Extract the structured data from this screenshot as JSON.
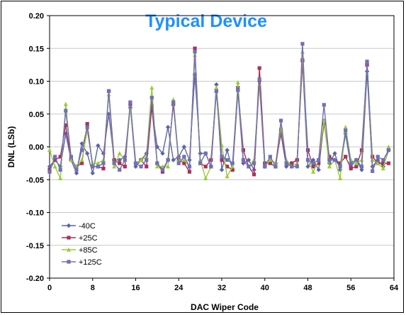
{
  "chart_data": {
    "type": "line",
    "title": "Typical Device",
    "title_color": "#1e90ff",
    "xlabel": "DAC Wiper Code",
    "ylabel": "DNL (LSb)",
    "xlim": [
      0,
      64
    ],
    "ylim": [
      -0.2,
      0.2
    ],
    "x_ticks": [
      0,
      8,
      16,
      24,
      32,
      40,
      48,
      56,
      64
    ],
    "x_tick_labels": [
      "0",
      "8",
      "16",
      "24",
      "32",
      "40",
      "48",
      "56",
      "64"
    ],
    "y_ticks": [
      0.2,
      0.15,
      0.1,
      0.05,
      0.0,
      -0.05,
      -0.1,
      -0.15,
      -0.2
    ],
    "y_tick_labels": [
      "0.20",
      "0.15",
      "0.10",
      "0.05",
      "0.00",
      "-0.05",
      "-0.10",
      "-0.15",
      "-0.20"
    ],
    "grid": "horizontal",
    "legend_position": "bottom-left",
    "x": [
      0,
      1,
      2,
      3,
      4,
      5,
      6,
      7,
      8,
      9,
      10,
      11,
      12,
      13,
      14,
      15,
      16,
      17,
      18,
      19,
      20,
      21,
      22,
      23,
      24,
      25,
      26,
      27,
      28,
      29,
      30,
      31,
      32,
      33,
      34,
      35,
      36,
      37,
      38,
      39,
      40,
      41,
      42,
      43,
      44,
      45,
      46,
      47,
      48,
      49,
      50,
      51,
      52,
      53,
      54,
      55,
      56,
      57,
      58,
      59,
      60,
      61,
      62,
      63
    ],
    "series": [
      {
        "name": "-40C",
        "color": "#5a64a8",
        "marker": "diamond",
        "values": [
          -0.03,
          -0.02,
          -0.03,
          0.02,
          -0.02,
          -0.04,
          0.005,
          -0.01,
          -0.04,
          0.002,
          -0.01,
          0.05,
          -0.02,
          -0.02,
          -0.015,
          0.06,
          -0.03,
          -0.02,
          -0.01,
          0.06,
          0.0,
          -0.01,
          0.03,
          -0.02,
          -0.015,
          0.0,
          -0.02,
          0.11,
          -0.01,
          -0.01,
          -0.03,
          0.095,
          -0.035,
          -0.005,
          -0.035,
          0.085,
          -0.025,
          -0.02,
          -0.035,
          0.1,
          -0.03,
          -0.02,
          -0.025,
          0.02,
          -0.03,
          -0.025,
          -0.02,
          0.13,
          -0.03,
          -0.02,
          -0.035,
          0.04,
          -0.025,
          -0.01,
          -0.035,
          0.02,
          -0.03,
          -0.02,
          -0.035,
          0.115,
          -0.03,
          -0.02,
          -0.03,
          -0.005
        ]
      },
      {
        "name": "+25C",
        "color": "#a8325a",
        "marker": "square",
        "values": [
          -0.035,
          -0.02,
          -0.015,
          0.033,
          -0.02,
          -0.03,
          -0.025,
          0.035,
          -0.03,
          -0.03,
          -0.033,
          0.085,
          -0.02,
          -0.025,
          -0.03,
          0.065,
          -0.025,
          -0.02,
          -0.03,
          0.062,
          -0.025,
          -0.038,
          -0.02,
          0.065,
          -0.02,
          -0.025,
          -0.038,
          0.15,
          -0.025,
          -0.03,
          -0.02,
          0.085,
          -0.02,
          -0.03,
          -0.035,
          0.09,
          -0.005,
          -0.03,
          -0.042,
          0.12,
          -0.025,
          -0.025,
          -0.03,
          0.025,
          -0.025,
          -0.025,
          -0.02,
          0.132,
          -0.005,
          -0.03,
          -0.025,
          0.035,
          -0.015,
          -0.02,
          -0.025,
          -0.015,
          -0.033,
          -0.03,
          -0.005,
          0.125,
          -0.015,
          -0.025,
          -0.025,
          -0.025
        ]
      },
      {
        "name": "+85C",
        "color": "#9acd32",
        "marker": "triangle",
        "values": [
          -0.005,
          -0.03,
          -0.048,
          0.065,
          -0.02,
          -0.03,
          -0.02,
          0.025,
          -0.025,
          -0.025,
          -0.02,
          0.08,
          -0.03,
          -0.01,
          -0.02,
          0.06,
          -0.025,
          -0.02,
          -0.015,
          0.09,
          -0.03,
          -0.03,
          -0.03,
          0.072,
          -0.02,
          -0.02,
          -0.03,
          0.14,
          -0.02,
          -0.048,
          -0.03,
          0.09,
          0.002,
          -0.045,
          -0.03,
          0.098,
          -0.02,
          -0.03,
          -0.02,
          0.095,
          -0.03,
          -0.02,
          -0.025,
          0.03,
          -0.02,
          -0.03,
          -0.025,
          0.145,
          -0.02,
          -0.038,
          -0.02,
          0.04,
          -0.03,
          -0.02,
          -0.048,
          0.03,
          -0.02,
          -0.025,
          -0.02,
          0.13,
          -0.02,
          -0.025,
          -0.033,
          0.0
        ]
      },
      {
        "name": "+125C",
        "color": "#7070b8",
        "marker": "square",
        "values": [
          -0.038,
          -0.015,
          -0.035,
          0.055,
          -0.015,
          -0.035,
          -0.005,
          0.03,
          -0.03,
          -0.03,
          -0.025,
          0.085,
          -0.025,
          -0.035,
          -0.02,
          0.068,
          -0.025,
          -0.03,
          -0.02,
          0.075,
          -0.025,
          -0.035,
          -0.02,
          0.068,
          -0.025,
          -0.015,
          -0.03,
          0.145,
          -0.025,
          -0.01,
          -0.03,
          0.085,
          -0.015,
          -0.02,
          -0.025,
          0.088,
          -0.02,
          -0.03,
          -0.025,
          0.103,
          -0.03,
          -0.015,
          -0.03,
          0.04,
          -0.025,
          -0.03,
          -0.03,
          0.157,
          -0.02,
          -0.025,
          -0.02,
          0.064,
          -0.02,
          -0.02,
          -0.03,
          0.025,
          -0.025,
          -0.02,
          -0.03,
          0.13,
          -0.037,
          -0.015,
          -0.02,
          -0.005
        ]
      }
    ]
  }
}
